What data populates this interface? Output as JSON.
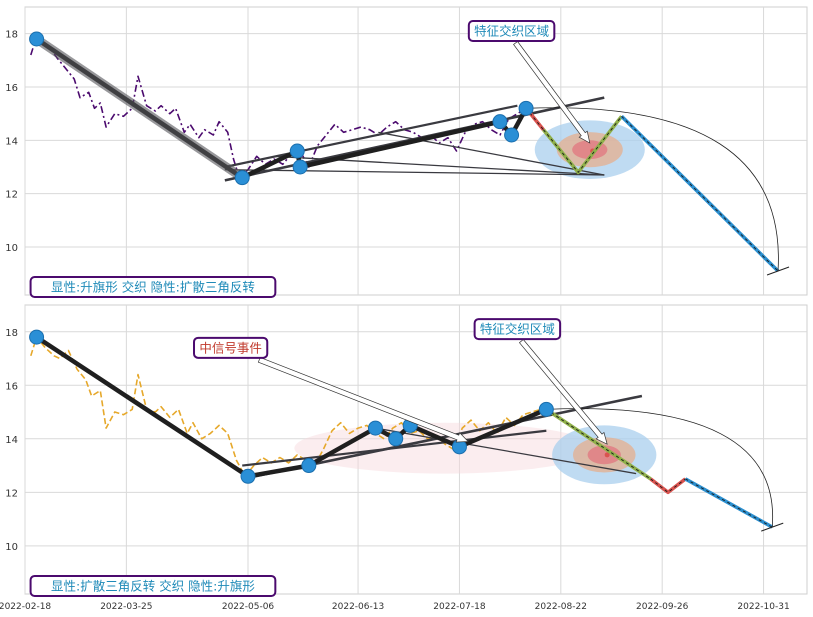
{
  "chart_data": [
    {
      "type": "line",
      "title": "",
      "xlabel": "",
      "ylabel": "",
      "ylim": [
        8.2,
        19.0
      ],
      "y_ticks": [
        10,
        12,
        14,
        16,
        18
      ],
      "grid": true,
      "price_color": "#4b0a6e",
      "price": [
        [
          "2022-02-20",
          17.2
        ],
        [
          "2022-02-22",
          17.9
        ],
        [
          "2022-02-24",
          17.6
        ],
        [
          "2022-02-27",
          17.4
        ],
        [
          "2022-03-01",
          17.1
        ],
        [
          "2022-03-04",
          16.7
        ],
        [
          "2022-03-07",
          16.3
        ],
        [
          "2022-03-09",
          15.6
        ],
        [
          "2022-03-12",
          15.8
        ],
        [
          "2022-03-14",
          15.2
        ],
        [
          "2022-03-16",
          15.4
        ],
        [
          "2022-03-18",
          14.5
        ],
        [
          "2022-03-21",
          15.0
        ],
        [
          "2022-03-24",
          14.9
        ],
        [
          "2022-03-27",
          15.2
        ],
        [
          "2022-03-29",
          16.4
        ],
        [
          "2022-04-01",
          15.3
        ],
        [
          "2022-04-04",
          15.1
        ],
        [
          "2022-04-06",
          15.3
        ],
        [
          "2022-04-09",
          15.0
        ],
        [
          "2022-04-11",
          15.2
        ],
        [
          "2022-04-14",
          14.3
        ],
        [
          "2022-04-16",
          14.6
        ],
        [
          "2022-04-19",
          14.1
        ],
        [
          "2022-04-21",
          14.4
        ],
        [
          "2022-04-24",
          14.2
        ],
        [
          "2022-04-26",
          14.7
        ],
        [
          "2022-04-29",
          14.3
        ],
        [
          "2022-05-01",
          13.3
        ],
        [
          "2022-05-03",
          12.6
        ],
        [
          "2022-05-06",
          12.9
        ],
        [
          "2022-05-09",
          13.4
        ],
        [
          "2022-05-12",
          13.1
        ],
        [
          "2022-05-15",
          13.3
        ],
        [
          "2022-05-18",
          13.1
        ],
        [
          "2022-05-21",
          13.5
        ],
        [
          "2022-05-24",
          13.6
        ],
        [
          "2022-05-27",
          13.0
        ],
        [
          "2022-05-30",
          13.8
        ],
        [
          "2022-06-02",
          14.2
        ],
        [
          "2022-06-05",
          14.6
        ],
        [
          "2022-06-08",
          14.3
        ],
        [
          "2022-06-11",
          14.4
        ],
        [
          "2022-06-14",
          14.5
        ],
        [
          "2022-06-17",
          14.4
        ],
        [
          "2022-06-20",
          14.2
        ],
        [
          "2022-06-23",
          14.5
        ],
        [
          "2022-06-26",
          14.7
        ],
        [
          "2022-06-29",
          14.4
        ],
        [
          "2022-07-02",
          14.3
        ],
        [
          "2022-07-05",
          14.1
        ],
        [
          "2022-07-08",
          14.2
        ],
        [
          "2022-07-11",
          13.9
        ],
        [
          "2022-07-14",
          14.1
        ],
        [
          "2022-07-17",
          13.6
        ],
        [
          "2022-07-20",
          14.3
        ],
        [
          "2022-07-23",
          14.6
        ],
        [
          "2022-07-26",
          14.7
        ],
        [
          "2022-07-29",
          14.4
        ],
        [
          "2022-08-01",
          14.2
        ],
        [
          "2022-08-04",
          14.8
        ],
        [
          "2022-08-07",
          15.0
        ],
        [
          "2022-08-10",
          15.2
        ]
      ],
      "pivots": [
        [
          "2022-02-22",
          17.8
        ],
        [
          "2022-05-04",
          12.6
        ],
        [
          "2022-05-23",
          13.6
        ],
        [
          "2022-05-24",
          13.0
        ],
        [
          "2022-08-01",
          14.7
        ],
        [
          "2022-08-05",
          14.2
        ],
        [
          "2022-08-10",
          15.2
        ]
      ],
      "forecast_segments": [
        {
          "color": "#d9534f",
          "points": [
            [
              "2022-08-10",
              15.2
            ],
            [
              "2022-08-16",
              14.4
            ]
          ]
        },
        {
          "color": "#8fb04a",
          "points": [
            [
              "2022-08-16",
              14.4
            ],
            [
              "2022-08-28",
              12.8
            ],
            [
              "2022-09-12",
              14.9
            ]
          ]
        },
        {
          "color": "#2b8fcf",
          "points": [
            [
              "2022-09-12",
              14.9
            ],
            [
              "2022-11-05",
              9.1
            ]
          ]
        }
      ],
      "trendlines": [
        [
          [
            "2022-04-28",
            12.5
          ],
          [
            "2022-09-06",
            15.6
          ]
        ],
        [
          [
            "2022-04-28",
            13.0
          ],
          [
            "2022-08-07",
            15.3
          ]
        ],
        [
          [
            "2022-04-28",
            12.9
          ],
          [
            "2022-09-06",
            12.7
          ]
        ],
        [
          [
            "2022-05-15",
            13.4
          ],
          [
            "2022-09-06",
            12.7
          ]
        ],
        [
          [
            "2022-06-20",
            14.3
          ],
          [
            "2022-09-06",
            12.7
          ]
        ]
      ],
      "target_zone": {
        "center": [
          "2022-09-01",
          13.65
        ],
        "rx_days": 19,
        "ry": 1.1,
        "dot": [
          "2022-09-02",
          13.6
        ]
      },
      "annotations": [
        {
          "text": "特征交织区域",
          "box_at": [
            "2022-08-05",
            18.1
          ],
          "arrow_to": [
            "2022-09-01",
            13.9
          ]
        },
        {
          "text": "显性:升旗形 交织 隐性:扩散三角反转",
          "box_at": [
            "2022-02-22",
            8.5
          ]
        }
      ]
    },
    {
      "type": "line",
      "title": "",
      "xlabel": "",
      "ylabel": "",
      "ylim": [
        8.2,
        19.0
      ],
      "y_ticks": [
        10,
        12,
        14,
        16,
        18
      ],
      "grid": true,
      "x_ticks": [
        "2022-02-18",
        "2022-03-25",
        "2022-05-06",
        "2022-06-13",
        "2022-07-18",
        "2022-08-22",
        "2022-09-26",
        "2022-10-31"
      ],
      "price_color": "#e6a82a",
      "price": [
        [
          "2022-02-20",
          17.1
        ],
        [
          "2022-02-22",
          17.8
        ],
        [
          "2022-02-25",
          17.4
        ],
        [
          "2022-02-28",
          17.1
        ],
        [
          "2022-03-02",
          17.0
        ],
        [
          "2022-03-05",
          17.3
        ],
        [
          "2022-03-08",
          16.6
        ],
        [
          "2022-03-11",
          16.2
        ],
        [
          "2022-03-13",
          15.6
        ],
        [
          "2022-03-16",
          15.8
        ],
        [
          "2022-03-18",
          14.4
        ],
        [
          "2022-03-21",
          15.0
        ],
        [
          "2022-03-24",
          14.9
        ],
        [
          "2022-03-27",
          15.1
        ],
        [
          "2022-03-29",
          16.4
        ],
        [
          "2022-04-01",
          15.1
        ],
        [
          "2022-04-04",
          15.0
        ],
        [
          "2022-04-06",
          15.2
        ],
        [
          "2022-04-09",
          14.8
        ],
        [
          "2022-04-12",
          15.1
        ],
        [
          "2022-04-15",
          14.2
        ],
        [
          "2022-04-17",
          14.6
        ],
        [
          "2022-04-20",
          14.0
        ],
        [
          "2022-04-23",
          14.2
        ],
        [
          "2022-04-26",
          14.5
        ],
        [
          "2022-04-29",
          14.2
        ],
        [
          "2022-05-02",
          13.2
        ],
        [
          "2022-05-05",
          12.6
        ],
        [
          "2022-05-08",
          13.0
        ],
        [
          "2022-05-11",
          13.3
        ],
        [
          "2022-05-14",
          13.1
        ],
        [
          "2022-05-17",
          13.3
        ],
        [
          "2022-05-20",
          13.1
        ],
        [
          "2022-05-23",
          13.4
        ],
        [
          "2022-05-26",
          13.2
        ],
        [
          "2022-05-29",
          13.0
        ],
        [
          "2022-06-01",
          13.6
        ],
        [
          "2022-06-04",
          14.3
        ],
        [
          "2022-06-07",
          14.6
        ],
        [
          "2022-06-10",
          14.2
        ],
        [
          "2022-06-13",
          14.4
        ],
        [
          "2022-06-16",
          14.5
        ],
        [
          "2022-06-19",
          14.2
        ],
        [
          "2022-06-22",
          14.0
        ],
        [
          "2022-06-25",
          14.4
        ],
        [
          "2022-06-28",
          14.6
        ],
        [
          "2022-07-01",
          14.2
        ],
        [
          "2022-07-04",
          14.3
        ],
        [
          "2022-07-07",
          14.0
        ],
        [
          "2022-07-10",
          14.1
        ],
        [
          "2022-07-13",
          13.8
        ],
        [
          "2022-07-16",
          13.6
        ],
        [
          "2022-07-19",
          14.4
        ],
        [
          "2022-07-22",
          14.7
        ],
        [
          "2022-07-25",
          14.3
        ],
        [
          "2022-07-28",
          14.6
        ],
        [
          "2022-07-31",
          14.2
        ],
        [
          "2022-08-03",
          14.8
        ],
        [
          "2022-08-06",
          14.5
        ],
        [
          "2022-08-09",
          14.9
        ],
        [
          "2022-08-12",
          15.0
        ],
        [
          "2022-08-15",
          15.1
        ]
      ],
      "pivots": [
        [
          "2022-02-22",
          17.8
        ],
        [
          "2022-05-06",
          12.6
        ],
        [
          "2022-05-27",
          13.0
        ],
        [
          "2022-06-19",
          14.4
        ],
        [
          "2022-06-26",
          14.0
        ],
        [
          "2022-07-01",
          14.5
        ],
        [
          "2022-07-18",
          13.7
        ],
        [
          "2022-08-17",
          15.1
        ]
      ],
      "forecast_segments": [
        {
          "color": "#8fb04a",
          "points": [
            [
              "2022-08-17",
              15.1
            ],
            [
              "2022-09-22",
              12.5
            ]
          ]
        },
        {
          "color": "#d9534f",
          "points": [
            [
              "2022-09-22",
              12.5
            ],
            [
              "2022-09-28",
              12.0
            ],
            [
              "2022-10-04",
              12.5
            ]
          ]
        },
        {
          "color": "#2b8fcf",
          "points": [
            [
              "2022-10-04",
              12.5
            ],
            [
              "2022-11-03",
              10.7
            ]
          ]
        }
      ],
      "trendlines": [
        [
          [
            "2022-05-04",
            12.5
          ],
          [
            "2022-09-19",
            15.6
          ]
        ],
        [
          [
            "2022-05-04",
            13.0
          ],
          [
            "2022-08-17",
            14.3
          ]
        ],
        [
          [
            "2022-06-19",
            14.4
          ],
          [
            "2022-09-17",
            12.7
          ]
        ]
      ],
      "event_zone": {
        "center": [
          "2022-07-13",
          13.65
        ],
        "rx_days": 52,
        "ry": 0.95
      },
      "target_zone": {
        "center": [
          "2022-09-06",
          13.4
        ],
        "rx_days": 18,
        "ry": 1.1,
        "dot": [
          "2022-09-07",
          13.4
        ]
      },
      "annotations": [
        {
          "text": "特征交织区域",
          "box_at": [
            "2022-08-07",
            18.1
          ],
          "arrow_to": [
            "2022-09-07",
            13.8
          ]
        },
        {
          "text": "中信号事件",
          "box_at": [
            "2022-04-30",
            17.4
          ],
          "arrow_to": [
            "2022-07-21",
            13.9
          ]
        },
        {
          "text": "显性:扩散三角反转 交织 隐性:升旗形",
          "box_at": [
            "2022-02-22",
            8.5
          ]
        }
      ]
    }
  ]
}
